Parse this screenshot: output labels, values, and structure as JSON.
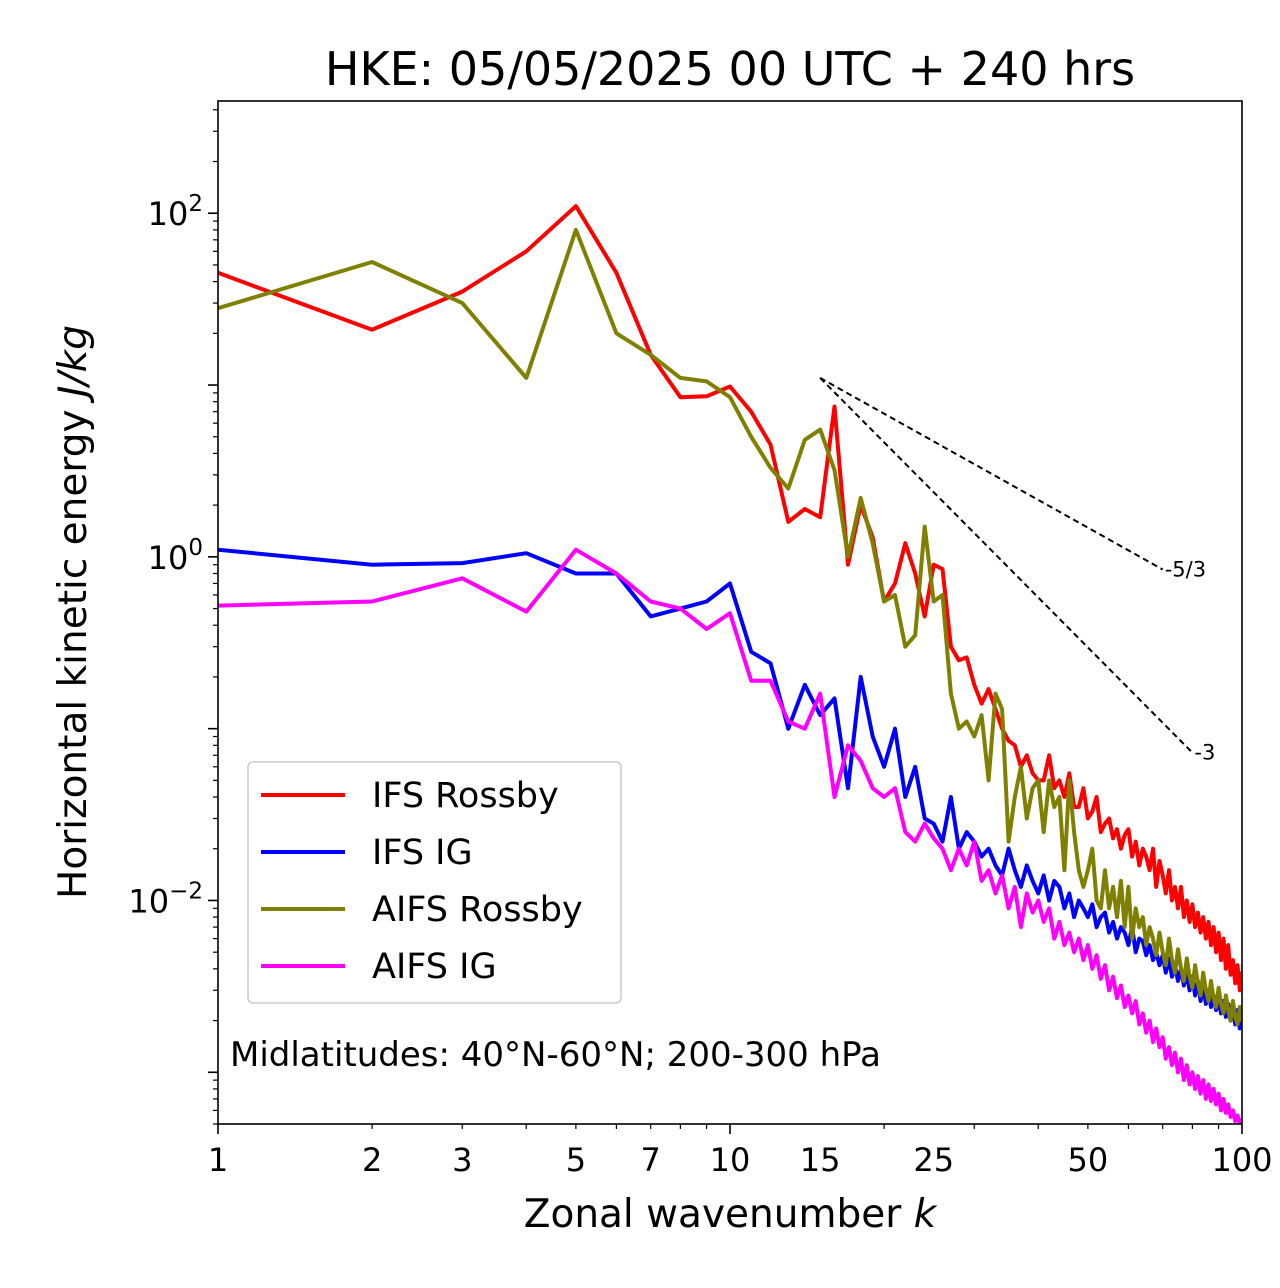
{
  "chart_data": {
    "type": "line",
    "title": "HKE: 05/05/2025 00 UTC + 240 hrs",
    "xlabel": "Zonal wavenumber",
    "xlabel_var": "k",
    "ylabel": "Horizontal kinetic energy",
    "ylabel_unit": "J/kg",
    "xscale": "log",
    "yscale": "log",
    "xlim": [
      1,
      100
    ],
    "ylim": [
      0.0005,
      450
    ],
    "x_ticks": [
      1,
      2,
      3,
      5,
      7,
      10,
      15,
      25,
      50,
      100
    ],
    "x_tick_labels": [
      "1",
      "2",
      "3",
      "5",
      "7",
      "10",
      "15",
      "25",
      "50",
      "100"
    ],
    "y_ticks": [
      {
        "value": 100,
        "base": "10",
        "exp": "2"
      },
      {
        "value": 1,
        "base": "10",
        "exp": "0"
      },
      {
        "value": 0.01,
        "base": "10",
        "exp": "−2"
      }
    ],
    "legend_position": "lower-left",
    "annotation": "Midlatitudes: 40°N-60°N; 200-300 hPa",
    "reference_slopes": [
      {
        "label": "-5/3",
        "slope": -1.6667,
        "x_start": 15,
        "y_start": 11,
        "x_end": 70
      },
      {
        "label": "-3",
        "slope": -3,
        "x_start": 15,
        "y_start": 11,
        "x_end": 80
      }
    ],
    "series": [
      {
        "name": "IFS Rossby",
        "color": "#ff0000",
        "x": [
          1,
          2,
          3,
          4,
          5,
          6,
          7,
          8,
          9,
          10,
          11,
          12,
          13,
          14,
          15,
          16,
          17,
          18,
          19,
          20,
          21,
          22,
          23,
          24,
          25,
          26,
          27,
          28,
          29,
          30,
          31,
          32,
          33,
          34,
          35,
          36,
          37,
          38,
          39,
          40,
          41,
          42,
          43,
          44,
          45,
          46,
          47,
          48,
          49,
          50,
          51,
          52,
          53,
          54,
          55,
          56,
          57,
          58,
          59,
          60,
          61,
          62,
          63,
          64,
          65,
          66,
          67,
          68,
          69,
          70,
          71,
          72,
          73,
          74,
          75,
          76,
          77,
          78,
          79,
          80,
          81,
          82,
          83,
          84,
          85,
          86,
          87,
          88,
          89,
          90,
          91,
          92,
          93,
          94,
          95,
          96,
          97,
          98,
          99,
          100
        ],
        "values": [
          45,
          21,
          35,
          60,
          110,
          45,
          15,
          8.5,
          8.6,
          9.8,
          7.0,
          4.5,
          1.6,
          1.9,
          1.7,
          7.5,
          0.9,
          2.0,
          1.3,
          0.55,
          0.7,
          1.2,
          0.8,
          0.45,
          0.9,
          0.85,
          0.3,
          0.25,
          0.26,
          0.18,
          0.14,
          0.17,
          0.13,
          0.1,
          0.085,
          0.08,
          0.06,
          0.07,
          0.055,
          0.05,
          0.05,
          0.07,
          0.045,
          0.05,
          0.04,
          0.055,
          0.035,
          0.035,
          0.045,
          0.03,
          0.033,
          0.04,
          0.025,
          0.028,
          0.03,
          0.023,
          0.026,
          0.02,
          0.024,
          0.026,
          0.018,
          0.022,
          0.016,
          0.02,
          0.018,
          0.015,
          0.02,
          0.012,
          0.017,
          0.014,
          0.011,
          0.015,
          0.01,
          0.012,
          0.009,
          0.012,
          0.008,
          0.01,
          0.0075,
          0.0095,
          0.007,
          0.0085,
          0.0065,
          0.008,
          0.006,
          0.0075,
          0.0055,
          0.007,
          0.005,
          0.0065,
          0.0045,
          0.006,
          0.004,
          0.0055,
          0.0037,
          0.0045,
          0.0033,
          0.0042,
          0.003,
          0.0038
        ]
      },
      {
        "name": "IFS IG",
        "color": "#0000ff",
        "x": [
          1,
          2,
          3,
          4,
          5,
          6,
          7,
          8,
          9,
          10,
          11,
          12,
          13,
          14,
          15,
          16,
          17,
          18,
          19,
          20,
          21,
          22,
          23,
          24,
          25,
          26,
          27,
          28,
          29,
          30,
          31,
          32,
          33,
          34,
          35,
          36,
          37,
          38,
          39,
          40,
          41,
          42,
          43,
          44,
          45,
          46,
          47,
          48,
          49,
          50,
          51,
          52,
          53,
          54,
          55,
          56,
          57,
          58,
          59,
          60,
          61,
          62,
          63,
          64,
          65,
          66,
          67,
          68,
          69,
          70,
          71,
          72,
          73,
          74,
          75,
          76,
          77,
          78,
          79,
          80,
          81,
          82,
          83,
          84,
          85,
          86,
          87,
          88,
          89,
          90,
          91,
          92,
          93,
          94,
          95,
          96,
          97,
          98,
          99,
          100
        ],
        "values": [
          1.1,
          0.9,
          0.92,
          1.05,
          0.8,
          0.8,
          0.45,
          0.5,
          0.55,
          0.7,
          0.28,
          0.24,
          0.1,
          0.18,
          0.12,
          0.15,
          0.045,
          0.2,
          0.09,
          0.06,
          0.1,
          0.04,
          0.06,
          0.03,
          0.028,
          0.022,
          0.04,
          0.02,
          0.025,
          0.022,
          0.018,
          0.02,
          0.016,
          0.014,
          0.02,
          0.015,
          0.012,
          0.016,
          0.013,
          0.011,
          0.014,
          0.01,
          0.013,
          0.012,
          0.009,
          0.011,
          0.008,
          0.01,
          0.009,
          0.008,
          0.0095,
          0.007,
          0.008,
          0.0085,
          0.0065,
          0.0075,
          0.006,
          0.007,
          0.0065,
          0.0055,
          0.007,
          0.005,
          0.006,
          0.0058,
          0.0048,
          0.0055,
          0.0045,
          0.005,
          0.0042,
          0.0048,
          0.0038,
          0.0046,
          0.0036,
          0.0042,
          0.0034,
          0.004,
          0.0032,
          0.0038,
          0.003,
          0.0036,
          0.0028,
          0.0034,
          0.0026,
          0.0032,
          0.0025,
          0.003,
          0.0024,
          0.0028,
          0.0023,
          0.0027,
          0.0022,
          0.0026,
          0.0021,
          0.0025,
          0.002,
          0.0024,
          0.0019,
          0.0023,
          0.0018,
          0.0022
        ]
      },
      {
        "name": "AIFS Rossby",
        "color": "#808000",
        "x": [
          1,
          2,
          3,
          4,
          5,
          6,
          7,
          8,
          9,
          10,
          11,
          12,
          13,
          14,
          15,
          16,
          17,
          18,
          19,
          20,
          21,
          22,
          23,
          24,
          25,
          26,
          27,
          28,
          29,
          30,
          31,
          32,
          33,
          34,
          35,
          36,
          37,
          38,
          39,
          40,
          41,
          42,
          43,
          44,
          45,
          46,
          47,
          48,
          49,
          50,
          51,
          52,
          53,
          54,
          55,
          56,
          57,
          58,
          59,
          60,
          61,
          62,
          63,
          64,
          65,
          66,
          67,
          68,
          69,
          70,
          71,
          72,
          73,
          74,
          75,
          76,
          77,
          78,
          79,
          80,
          81,
          82,
          83,
          84,
          85,
          86,
          87,
          88,
          89,
          90,
          91,
          92,
          93,
          94,
          95,
          96,
          97,
          98,
          99,
          100
        ],
        "values": [
          28,
          52,
          30,
          11,
          80,
          20,
          15,
          11,
          10.5,
          8.5,
          5.0,
          3.3,
          2.5,
          4.8,
          5.5,
          3.2,
          1.0,
          2.2,
          1.2,
          0.55,
          0.6,
          0.3,
          0.35,
          1.5,
          0.55,
          0.6,
          0.16,
          0.1,
          0.11,
          0.09,
          0.12,
          0.05,
          0.16,
          0.13,
          0.022,
          0.04,
          0.06,
          0.03,
          0.045,
          0.05,
          0.025,
          0.05,
          0.035,
          0.04,
          0.015,
          0.05,
          0.025,
          0.015,
          0.012,
          0.015,
          0.02,
          0.01,
          0.009,
          0.015,
          0.009,
          0.012,
          0.008,
          0.013,
          0.007,
          0.012,
          0.006,
          0.009,
          0.007,
          0.008,
          0.0055,
          0.007,
          0.006,
          0.0048,
          0.0065,
          0.005,
          0.0042,
          0.006,
          0.0045,
          0.0038,
          0.0052,
          0.004,
          0.0034,
          0.0046,
          0.0036,
          0.0031,
          0.0042,
          0.0033,
          0.0028,
          0.0038,
          0.003,
          0.0026,
          0.0034,
          0.0027,
          0.0024,
          0.0031,
          0.0025,
          0.0022,
          0.0028,
          0.0023,
          0.002,
          0.0026,
          0.0021,
          0.0019,
          0.0024,
          0.002
        ]
      },
      {
        "name": "AIFS IG",
        "color": "#ff00ff",
        "x": [
          1,
          2,
          3,
          4,
          5,
          6,
          7,
          8,
          9,
          10,
          11,
          12,
          13,
          14,
          15,
          16,
          17,
          18,
          19,
          20,
          21,
          22,
          23,
          24,
          25,
          26,
          27,
          28,
          29,
          30,
          31,
          32,
          33,
          34,
          35,
          36,
          37,
          38,
          39,
          40,
          41,
          42,
          43,
          44,
          45,
          46,
          47,
          48,
          49,
          50,
          51,
          52,
          53,
          54,
          55,
          56,
          57,
          58,
          59,
          60,
          61,
          62,
          63,
          64,
          65,
          66,
          67,
          68,
          69,
          70,
          71,
          72,
          73,
          74,
          75,
          76,
          77,
          78,
          79,
          80,
          81,
          82,
          83,
          84,
          85,
          86,
          87,
          88,
          89,
          90,
          91,
          92,
          93,
          94,
          95,
          96,
          97,
          98,
          99,
          100
        ],
        "values": [
          0.52,
          0.55,
          0.75,
          0.48,
          1.1,
          0.8,
          0.55,
          0.5,
          0.38,
          0.47,
          0.19,
          0.19,
          0.11,
          0.1,
          0.16,
          0.04,
          0.08,
          0.065,
          0.045,
          0.04,
          0.045,
          0.025,
          0.022,
          0.028,
          0.023,
          0.02,
          0.015,
          0.02,
          0.016,
          0.022,
          0.013,
          0.015,
          0.011,
          0.014,
          0.009,
          0.012,
          0.007,
          0.011,
          0.0085,
          0.01,
          0.0075,
          0.009,
          0.006,
          0.0075,
          0.0055,
          0.0065,
          0.005,
          0.006,
          0.0045,
          0.0055,
          0.004,
          0.0048,
          0.0035,
          0.0042,
          0.003,
          0.0036,
          0.0027,
          0.0032,
          0.0024,
          0.0028,
          0.0022,
          0.0026,
          0.0019,
          0.0022,
          0.0017,
          0.002,
          0.0015,
          0.0018,
          0.0014,
          0.0016,
          0.0012,
          0.0014,
          0.0011,
          0.0013,
          0.001,
          0.0012,
          0.0009,
          0.0011,
          0.00085,
          0.001,
          0.0008,
          0.00095,
          0.00075,
          0.0009,
          0.0007,
          0.00085,
          0.00068,
          0.0008,
          0.00065,
          0.00075,
          0.0006,
          0.0007,
          0.00058,
          0.00065,
          0.00055,
          0.0006,
          0.00052,
          0.00056,
          0.0005,
          0.00053
        ]
      }
    ]
  }
}
